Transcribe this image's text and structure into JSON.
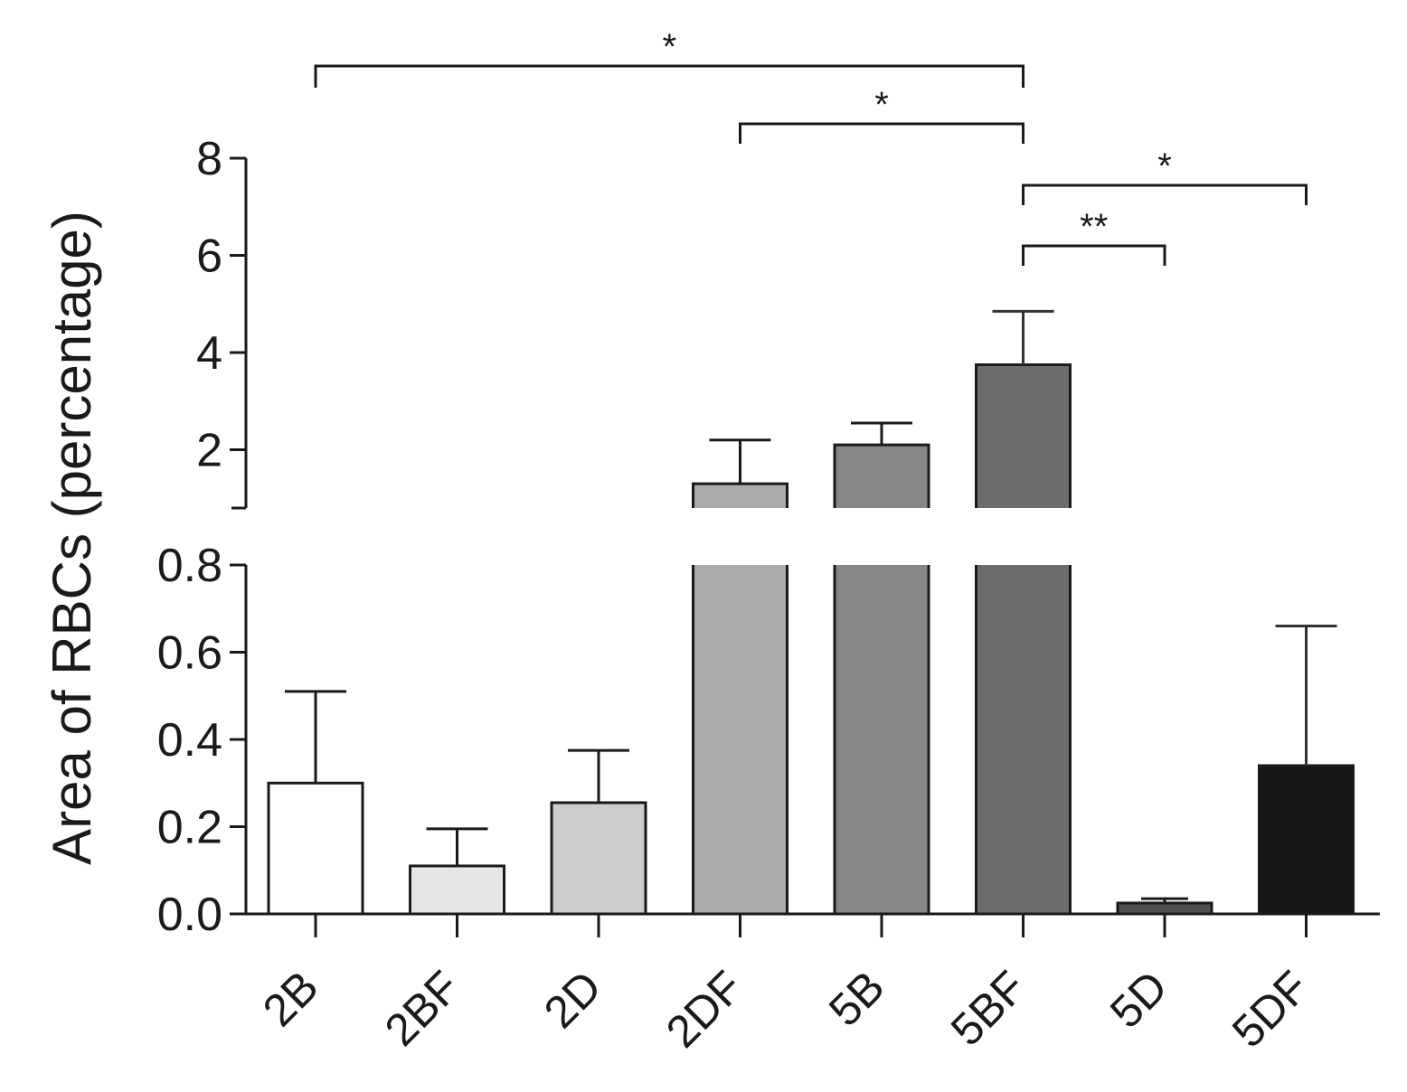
{
  "chart_data": {
    "type": "bar",
    "ylabel": "Area of RBCs (percentage)",
    "xlabel": "",
    "y_axis_break": true,
    "lower_segment": {
      "ylim": [
        0,
        0.8
      ],
      "ticks": [
        "0.0",
        "0.2",
        "0.4",
        "0.6",
        "0.8"
      ]
    },
    "upper_segment": {
      "ylim": [
        0.8,
        8
      ],
      "ticks": [
        "2",
        "4",
        "6",
        "8"
      ]
    },
    "categories": [
      "2B",
      "2BF",
      "2D",
      "2DF",
      "5B",
      "5BF",
      "5D",
      "5DF"
    ],
    "values": [
      0.3,
      0.11,
      0.255,
      1.3,
      2.1,
      3.75,
      0.025,
      0.34
    ],
    "errors": [
      0.21,
      0.085,
      0.12,
      0.9,
      0.45,
      1.1,
      0.01,
      0.32
    ],
    "colors": [
      "#ffffff",
      "#e6e6e6",
      "#cdcdcd",
      "#a9aaab",
      "#858685",
      "#6b6d6b",
      "#505050",
      "#161616"
    ],
    "significance": [
      {
        "from": "2B",
        "to": "5BF",
        "label": "*"
      },
      {
        "from": "2DF",
        "to": "5BF",
        "label": "*"
      },
      {
        "from": "5BF",
        "to": "5DF",
        "label": "*"
      },
      {
        "from": "5BF",
        "to": "5D",
        "label": "**"
      }
    ]
  }
}
